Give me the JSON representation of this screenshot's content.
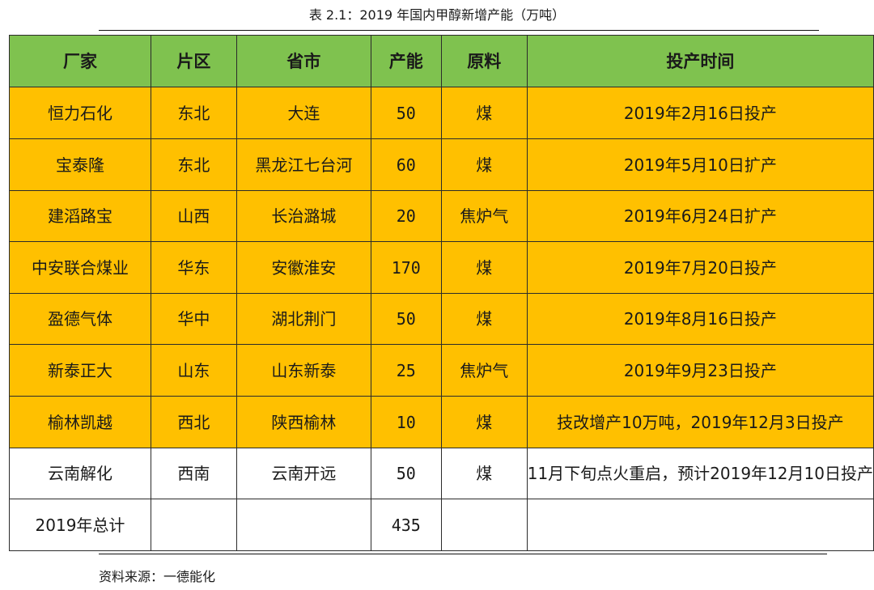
{
  "caption": "表 2.1：2019 年国内甲醇新增产能（万吨）",
  "table": {
    "headers": [
      "厂家",
      "片区",
      "省市",
      "产能",
      "原料",
      "投产时间"
    ],
    "rows": [
      {
        "company": "恒力石化",
        "region": "东北",
        "province_city": "大连",
        "capacity": "50",
        "feedstock": "煤",
        "start_time": "2019年2月16日投产"
      },
      {
        "company": "宝泰隆",
        "region": "东北",
        "province_city": "黑龙江七台河",
        "capacity": "60",
        "feedstock": "煤",
        "start_time": "2019年5月10日扩产"
      },
      {
        "company": "建滔路宝",
        "region": "山西",
        "province_city": "长治潞城",
        "capacity": "20",
        "feedstock": "焦炉气",
        "start_time": "2019年6月24日扩产"
      },
      {
        "company": "中安联合煤业",
        "region": "华东",
        "province_city": "安徽淮安",
        "capacity": "170",
        "feedstock": "煤",
        "start_time": "2019年7月20日投产"
      },
      {
        "company": "盈德气体",
        "region": "华中",
        "province_city": "湖北荆门",
        "capacity": "50",
        "feedstock": "煤",
        "start_time": "2019年8月16日投产"
      },
      {
        "company": "新泰正大",
        "region": "山东",
        "province_city": "山东新泰",
        "capacity": "25",
        "feedstock": "焦炉气",
        "start_time": "2019年9月23日投产"
      },
      {
        "company": "榆林凯越",
        "region": "西北",
        "province_city": "陕西榆林",
        "capacity": "10",
        "feedstock": "煤",
        "start_time": "技改增产10万吨，2019年12月3日投产"
      },
      {
        "company": "云南解化",
        "region": "西南",
        "province_city": "云南开远",
        "capacity": "50",
        "feedstock": "煤",
        "start_time": "11月下旬点火重启，预计2019年12月10日投产"
      }
    ],
    "total": {
      "label": "2019年总计",
      "capacity": "435"
    }
  },
  "source": "资料来源：一德能化",
  "colors": {
    "header_bg": "#7fc24f",
    "highlight_row_bg": "#ffc000",
    "plain_row_bg": "#ffffff",
    "border": "#2b2b2b"
  }
}
